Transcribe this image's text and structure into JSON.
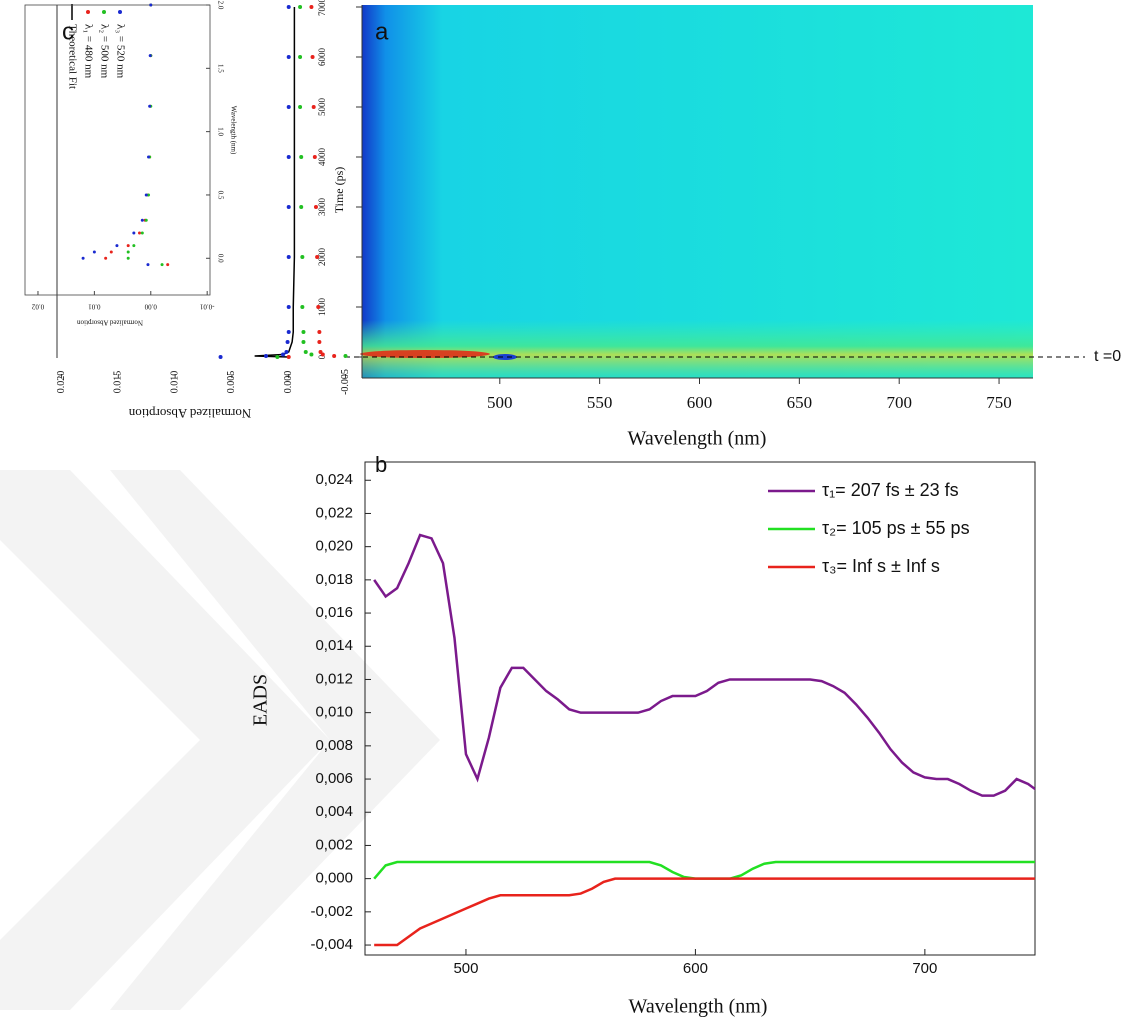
{
  "chart_data": [
    {
      "type": "heatmap",
      "panel_label": "a",
      "xlabel": "Wavelength (nm)",
      "ylabel": "Time (ps)",
      "xlim": [
        431,
        767
      ],
      "ylim": [
        -420,
        7040
      ],
      "xticks": [
        500,
        550,
        600,
        650,
        700,
        750
      ],
      "yticks": [
        0,
        1000,
        2000,
        3000,
        4000,
        5000,
        6000,
        7000
      ],
      "annotation": {
        "text": "t =0",
        "y": 0
      }
    },
    {
      "type": "line",
      "panel_label": "b",
      "xlabel": "Wavelength (nm)",
      "ylabel": "EADS",
      "xlim": [
        456,
        748
      ],
      "ylim": [
        -0.0046,
        0.0251
      ],
      "xticks": [
        500,
        600,
        700
      ],
      "yticks": [
        {
          "value": -0.004,
          "label": "-0,004"
        },
        {
          "value": -0.002,
          "label": "-0,002"
        },
        {
          "value": 0,
          "label": "0,000"
        },
        {
          "value": 0.002,
          "label": "0,002"
        },
        {
          "value": 0.004,
          "label": "0,004"
        },
        {
          "value": 0.006,
          "label": "0,006"
        },
        {
          "value": 0.008,
          "label": "0,008"
        },
        {
          "value": 0.01,
          "label": "0,010"
        },
        {
          "value": 0.012,
          "label": "0,012"
        },
        {
          "value": 0.014,
          "label": "0,014"
        },
        {
          "value": 0.016,
          "label": "0,016"
        },
        {
          "value": 0.018,
          "label": "0,018"
        },
        {
          "value": 0.02,
          "label": "0,020"
        },
        {
          "value": 0.022,
          "label": "0,022"
        },
        {
          "value": 0.024,
          "label": "0,024"
        }
      ],
      "x": [
        460,
        465,
        470,
        475,
        480,
        485,
        490,
        495,
        500,
        505,
        510,
        515,
        520,
        525,
        530,
        535,
        540,
        545,
        550,
        555,
        560,
        565,
        570,
        575,
        580,
        585,
        590,
        595,
        600,
        605,
        610,
        615,
        620,
        625,
        630,
        635,
        640,
        645,
        650,
        655,
        660,
        665,
        670,
        675,
        680,
        685,
        690,
        695,
        700,
        705,
        710,
        715,
        720,
        725,
        730,
        735,
        740,
        745,
        750
      ],
      "series": [
        {
          "name": "τ₁= 207 fs ± 23 fs",
          "color": "#7b1a8c",
          "values": [
            0.018,
            0.017,
            0.0175,
            0.019,
            0.0207,
            0.0205,
            0.019,
            0.0145,
            0.0075,
            0.006,
            0.0085,
            0.0115,
            0.0127,
            0.0127,
            0.012,
            0.0113,
            0.0108,
            0.0102,
            0.01,
            0.01,
            0.01,
            0.01,
            0.01,
            0.01,
            0.0102,
            0.0107,
            0.011,
            0.011,
            0.011,
            0.0113,
            0.0118,
            0.012,
            0.012,
            0.012,
            0.012,
            0.012,
            0.012,
            0.012,
            0.012,
            0.0119,
            0.0116,
            0.0112,
            0.0105,
            0.0097,
            0.0088,
            0.0078,
            0.007,
            0.0064,
            0.0061,
            0.006,
            0.006,
            0.0057,
            0.0053,
            0.005,
            0.005,
            0.0053,
            0.006,
            0.0057,
            0.0052
          ]
        },
        {
          "name": "τ₂=  105 ps ± 55 ps",
          "color": "#22e022",
          "values": [
            0,
            0.0008,
            0.001,
            0.001,
            0.001,
            0.001,
            0.001,
            0.001,
            0.001,
            0.001,
            0.001,
            0.001,
            0.001,
            0.001,
            0.001,
            0.001,
            0.001,
            0.001,
            0.001,
            0.001,
            0.001,
            0.001,
            0.001,
            0.001,
            0.001,
            0.0008,
            0.0004,
            0.0001,
            0,
            0,
            0,
            0,
            0.0002,
            0.0006,
            0.0009,
            0.001,
            0.001,
            0.001,
            0.001,
            0.001,
            0.001,
            0.001,
            0.001,
            0.001,
            0.001,
            0.001,
            0.001,
            0.001,
            0.001,
            0.001,
            0.001,
            0.001,
            0.001,
            0.001,
            0.001,
            0.001,
            0.001,
            0.001,
            0.001
          ]
        },
        {
          "name": "τ₃=  Inf s ± Inf s",
          "color": "#e8231c",
          "values": [
            -0.004,
            -0.004,
            -0.004,
            -0.0035,
            -0.003,
            -0.0027,
            -0.0024,
            -0.0021,
            -0.0018,
            -0.0015,
            -0.0012,
            -0.001,
            -0.001,
            -0.001,
            -0.001,
            -0.001,
            -0.001,
            -0.001,
            -0.0009,
            -0.0006,
            -0.0002,
            0,
            0,
            0,
            0,
            0,
            0,
            0,
            0,
            0,
            0,
            0,
            0,
            0,
            0,
            0,
            0,
            0,
            0,
            0,
            0,
            0,
            0,
            0,
            0,
            0,
            0,
            0,
            0,
            0,
            0,
            0,
            0,
            0,
            0,
            0,
            0,
            0,
            0
          ]
        }
      ]
    },
    {
      "type": "scatter",
      "panel_label": "c",
      "ylabel": "Normalized Absorption",
      "xlim": [
        -420,
        7040
      ],
      "ylim": [
        0.0204,
        -0.0061
      ],
      "yticks": [
        {
          "value": 0.02,
          "label": "0.020"
        },
        0.015,
        {
          "value": 0.01,
          "label": "0.010"
        },
        0.005,
        {
          "value": 0,
          "label": "0.000"
        },
        -0.005
      ],
      "x": [
        0,
        20,
        50,
        100,
        300,
        500,
        1000,
        2000,
        3000,
        4000,
        5000,
        6000,
        7000
      ],
      "series": [
        {
          "name": "Theoretical Fit",
          "color": "#000000",
          "mode": "line",
          "values": [
            0.0,
            0.003,
            0.0005,
            0.0,
            -0.0003,
            -0.0004,
            -0.0004,
            -0.0005,
            -0.0005,
            -0.0005,
            -0.0005,
            -0.0005,
            -0.0005
          ]
        },
        {
          "name": "λ₁ = 480 nm",
          "color": "#e8231c",
          "mode": "markers",
          "values": [
            0.0,
            -0.004,
            -0.003,
            -0.0028,
            -0.0027,
            -0.0027,
            -0.0026,
            -0.0025,
            -0.0024,
            -0.0023,
            -0.0022,
            -0.0021,
            -0.002
          ]
        },
        {
          "name": "λ₂ = 500 nm",
          "color": "#22c022",
          "mode": "markers",
          "values": [
            0.001,
            -0.005,
            -0.002,
            -0.0015,
            -0.0013,
            -0.0013,
            -0.0012,
            -0.0012,
            -0.0011,
            -0.0011,
            -0.001,
            -0.001,
            -0.001
          ]
        },
        {
          "name": "λ₃ = 520 nm",
          "color": "#1a2ad0",
          "mode": "markers",
          "values": [
            0.006,
            0.002,
            0.0005,
            0.0002,
            0.0001,
            0,
            0,
            0,
            0,
            0,
            0,
            0,
            0
          ]
        }
      ]
    },
    {
      "type": "scatter",
      "xlabel": "Wavelength (nm)",
      "ylabel": "Normalized Absorption",
      "xlim": [
        -0.29,
        2.0
      ],
      "ylim": [
        0.0223,
        -0.0105
      ],
      "xticks": [
        {
          "value": 0,
          "label": "0.0"
        },
        0.5,
        {
          "value": 1,
          "label": "1.0"
        },
        1.5,
        {
          "value": 2,
          "label": "2.0"
        }
      ],
      "yticks": [
        0.02,
        0.01,
        {
          "value": 0,
          "label": "0.00"
        },
        -0.01
      ],
      "x": [
        -0.05,
        0,
        0.05,
        0.1,
        0.2,
        0.3,
        0.5,
        0.8,
        1.2,
        1.6,
        2.0
      ],
      "series": [
        {
          "color": "#e8231c",
          "values": [
            -0.003,
            0.008,
            0.007,
            0.004,
            0.002,
            0.001,
            0.0005,
            0.0002,
            0.0001,
            0,
            0
          ]
        },
        {
          "color": "#22c022",
          "values": [
            -0.002,
            0.004,
            0.004,
            0.003,
            0.0015,
            0.0008,
            0.0004,
            0.0002,
            0,
            0,
            0
          ]
        },
        {
          "color": "#1a2ad0",
          "values": [
            0.0005,
            0.012,
            0.01,
            0.006,
            0.003,
            0.0015,
            0.0008,
            0.0004,
            0.0002,
            0.0001,
            0
          ]
        }
      ]
    }
  ]
}
